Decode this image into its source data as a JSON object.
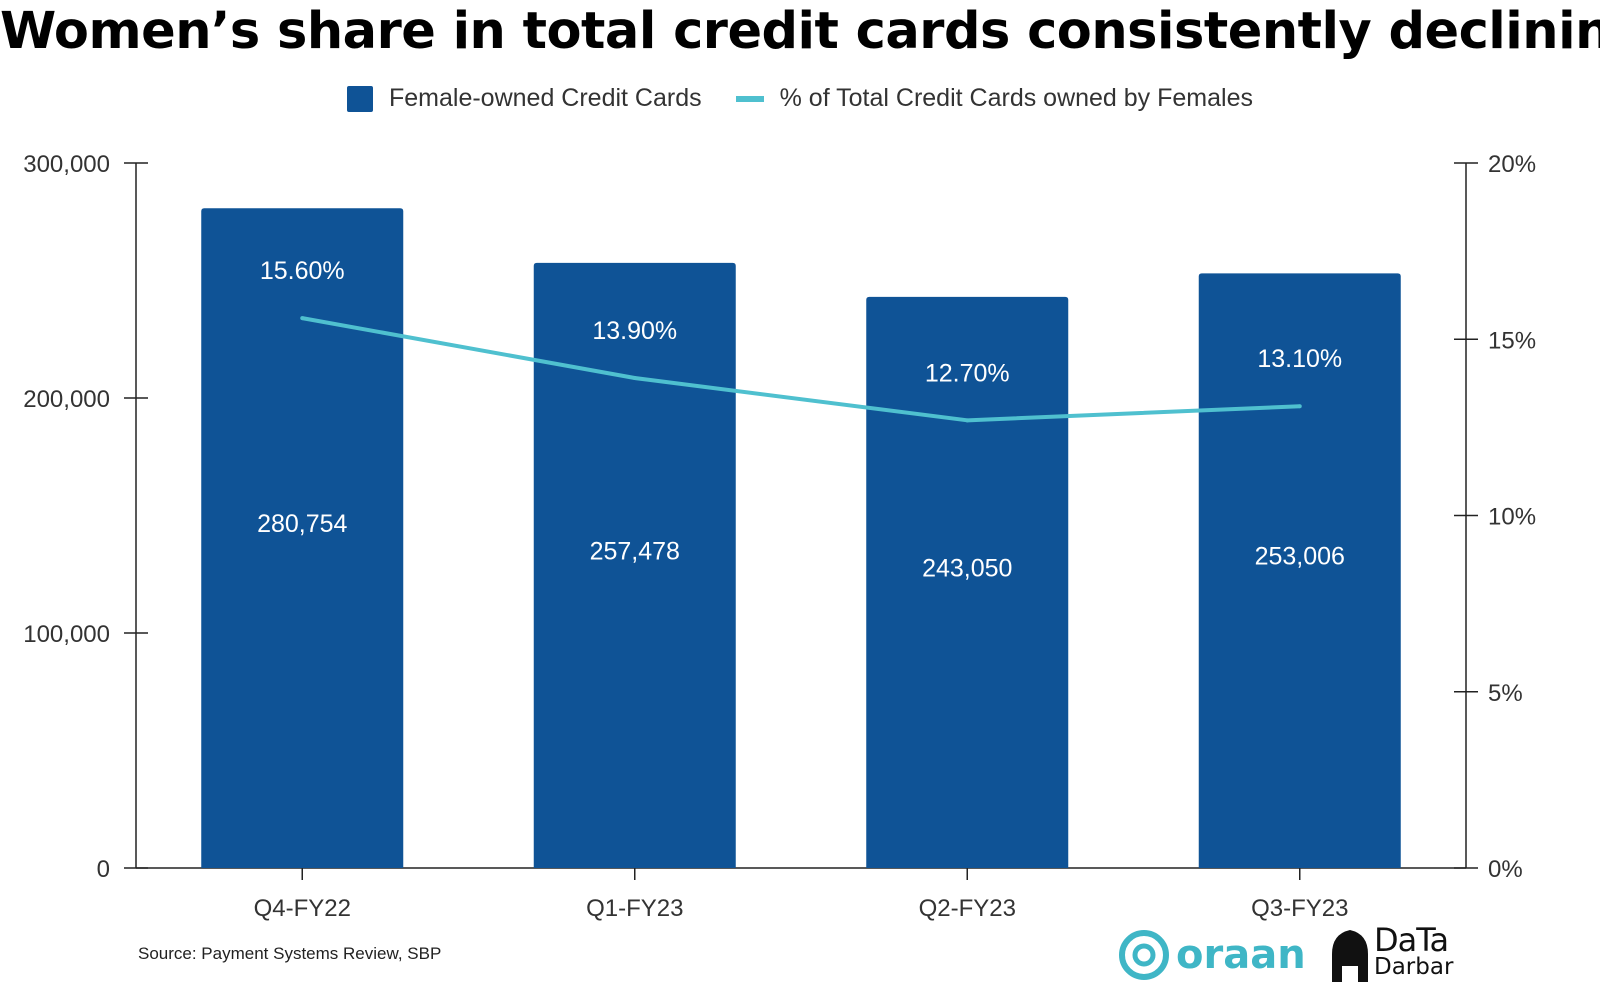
{
  "title": "Women’s share in total credit cards consistently declining",
  "legend": {
    "bar_label": "Female-owned Credit Cards",
    "line_label": "% of Total Credit Cards owned by Females"
  },
  "colors": {
    "bar": "#0f5396",
    "line": "#4fc0cf",
    "axis": "#222222"
  },
  "source": "Source:  Payment Systems Review, SBP",
  "logos": {
    "oraan": "oraan",
    "datadarbar_top": "DaTa",
    "datadarbar_bottom": "Darbar"
  },
  "chart_data": {
    "type": "bar",
    "categories": [
      "Q4-FY22",
      "Q1-FY23",
      "Q2-FY23",
      "Q3-FY23"
    ],
    "series": [
      {
        "name": "Female-owned Credit Cards",
        "type": "bar",
        "axis": "left",
        "values": [
          280754,
          257478,
          243050,
          253006
        ],
        "labels": [
          "280,754",
          "257,478",
          "243,050",
          "253,006"
        ]
      },
      {
        "name": "% of Total Credit Cards owned by Females",
        "type": "line",
        "axis": "right",
        "values": [
          15.6,
          13.9,
          12.7,
          13.1
        ],
        "labels": [
          "15.60%",
          "13.90%",
          "12.70%",
          "13.10%"
        ]
      }
    ],
    "y_left": {
      "min": 0,
      "max": 300000,
      "ticks": [
        0,
        100000,
        200000,
        300000
      ],
      "tick_labels": [
        "0",
        "100,000",
        "200,000",
        "300,000"
      ]
    },
    "y_right": {
      "min": 0,
      "max": 20,
      "ticks": [
        0,
        5,
        10,
        15,
        20
      ],
      "tick_labels": [
        "0%",
        "5%",
        "10%",
        "15%",
        "20%"
      ]
    },
    "legend_position": "top",
    "grid": false
  }
}
